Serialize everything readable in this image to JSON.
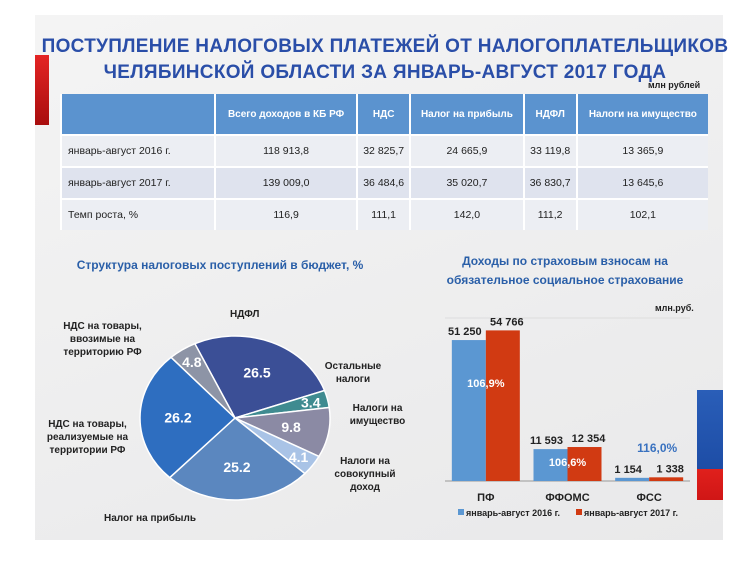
{
  "title": {
    "line1": "ПОСТУПЛЕНИЕ НАЛОГОВЫХ ПЛАТЕЖЕЙ ОТ НАЛОГОПЛАТЕЛЬЩИКОВ",
    "line2": "ЧЕЛЯБИНСКОЙ ОБЛАСТИ ЗА ЯНВАРЬ-АВГУСТ 2017 ГОДА",
    "unit": "млн рублей"
  },
  "table": {
    "headers": [
      "",
      "Всего доходов в КБ РФ",
      "НДС",
      "Налог на прибыль",
      "НДФЛ",
      "Налоги на имущество"
    ],
    "rows": [
      [
        "январь-август 2016 г.",
        "118 913,8",
        "32 825,7",
        "24 665,9",
        "33 119,8",
        "13 365,9"
      ],
      [
        "январь-август 2017 г.",
        "139 009,0",
        "36 484,6",
        "35 020,7",
        "36 830,7",
        "13 645,6"
      ],
      [
        "Темп роста, %",
        "116,9",
        "111,1",
        "142,0",
        "111,2",
        "102,1"
      ]
    ]
  },
  "chart_data": [
    {
      "type": "pie",
      "title": "Структура налоговых поступлений в бюджет, %",
      "slices": [
        {
          "label": "НДФЛ",
          "value": 26.5,
          "color": "#3b4f96"
        },
        {
          "label": "Остальные налоги",
          "value": 3.4,
          "color": "#3f8b90"
        },
        {
          "label": "Налоги на имущество",
          "value": 9.8,
          "color": "#8b8aa4"
        },
        {
          "label": "Налоги на совокупный доход",
          "value": 4.1,
          "color": "#a9c3e6"
        },
        {
          "label": "Налог на прибыль",
          "value": 25.2,
          "color": "#5b87bf"
        },
        {
          "label": "НДС на товары, реализуемые на территории РФ",
          "value": 26.2,
          "color": "#2e6ec0"
        },
        {
          "label": "НДС на товары, ввозимые на территорию РФ",
          "value": 4.8,
          "color": "#8d94a6"
        }
      ]
    },
    {
      "type": "bar",
      "title": "Доходы по страховым взносам на обязательное социальное страхование",
      "unit": "млн.руб.",
      "categories": [
        "ПФ",
        "ФФОМС",
        "ФСС"
      ],
      "series": [
        {
          "name": "январь-август 2016 г.",
          "values": [
            51250,
            11593,
            1154
          ],
          "labels": [
            "51 250",
            "11 593",
            "1 154"
          ],
          "color": "#5b97d2"
        },
        {
          "name": "январь-август 2017 г.",
          "values": [
            54766,
            12354,
            1338
          ],
          "labels": [
            "54 766",
            "12 354",
            "1 338"
          ],
          "color": "#d13a12"
        }
      ],
      "growth": [
        "106,9%",
        "106,6%",
        "116,0%"
      ],
      "ylim": [
        0,
        60000
      ]
    }
  ]
}
